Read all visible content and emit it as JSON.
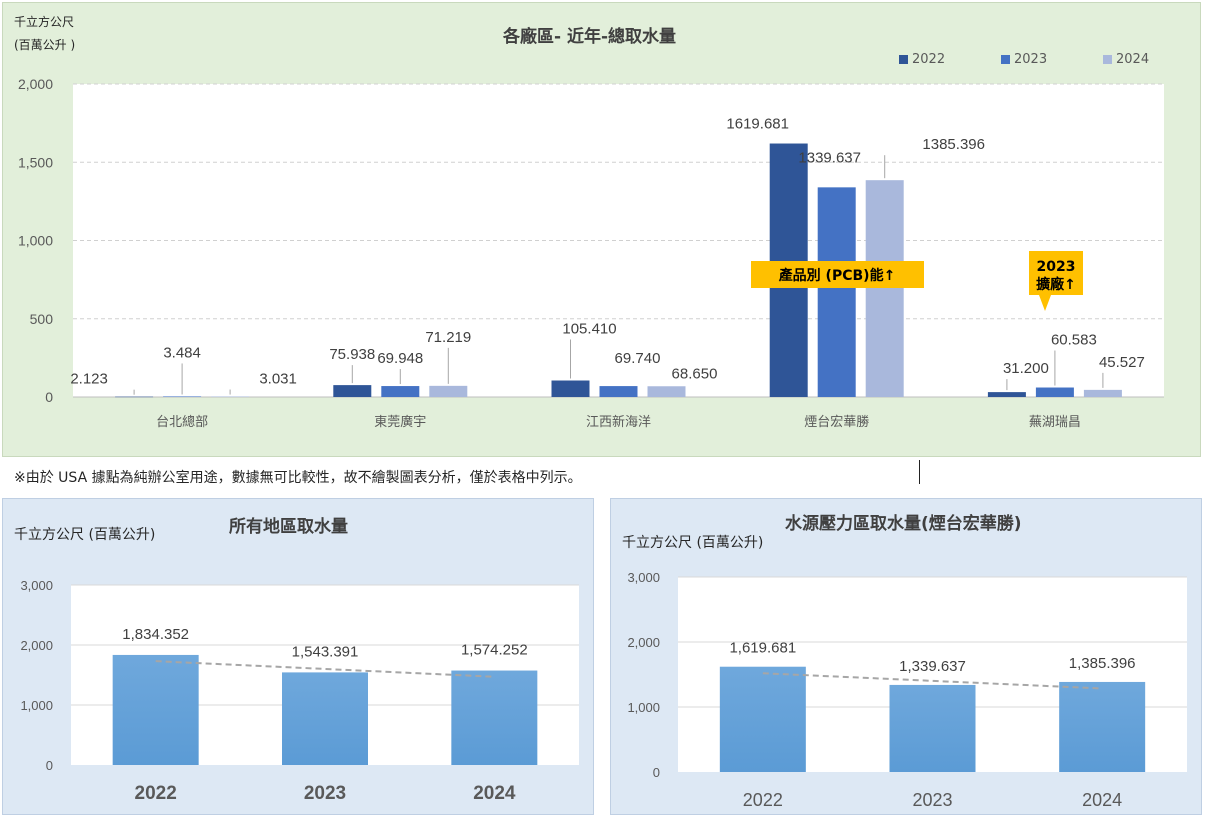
{
  "note": "※由於 USA 據點為純辦公室用途，數據無可比較性，故不繪製圖表分析，僅於表格中列示。",
  "colors": {
    "y2022": "#2f5597",
    "y2023": "#4472c4",
    "y2024": "#a9b8dc",
    "bar_bottom": "#5b9bd5",
    "bar_top": "#6fa8dc",
    "callout": "#ffc000"
  },
  "chart_data": [
    {
      "type": "bar",
      "title": "各廠區- 近年-總取水量",
      "unit_line1": "千立方公尺",
      "unit_line2": "(百萬公升 )",
      "categories": [
        "台北總部",
        "東莞廣宇",
        "江西新海洋",
        "煙台宏華勝",
        "蕪湖瑞昌"
      ],
      "series": [
        {
          "name": "2022",
          "values": [
            2.123,
            75.938,
            105.41,
            1619.681,
            31.2
          ],
          "labels": [
            "2.123",
            "75.938",
            "105.410",
            "1619.681",
            "31.200"
          ]
        },
        {
          "name": "2023",
          "values": [
            3.484,
            69.948,
            69.74,
            1339.637,
            60.583
          ],
          "labels": [
            "3.484",
            "69.948",
            "69.740",
            "1339.637",
            "60.583"
          ]
        },
        {
          "name": "2024",
          "values": [
            3.031,
            71.219,
            68.65,
            1385.396,
            45.527
          ],
          "labels": [
            "3.031",
            "71.219",
            "68.650",
            "1385.396",
            "45.527"
          ]
        }
      ],
      "ylim": [
        0,
        2000
      ],
      "yticks": [
        "0",
        "500",
        "1,000",
        "1,500",
        "2,000"
      ],
      "legend": "top-right",
      "grid": true,
      "annotations": [
        "產品別 (PCB)能↑",
        "2023\n擴廠↑"
      ]
    },
    {
      "type": "bar",
      "title": "所有地區取水量",
      "unit": "千立方公尺 (百萬公升)",
      "categories": [
        "2022",
        "2023",
        "2024"
      ],
      "values": [
        1834.352,
        1543.391,
        1574.252
      ],
      "labels": [
        "1,834.352",
        "1,543.391",
        "1,574.252"
      ],
      "ylim": [
        0,
        3000
      ],
      "yticks": [
        "0",
        "1,000",
        "2,000",
        "3,000"
      ],
      "trendline": true,
      "grid": true
    },
    {
      "type": "bar",
      "title": "水源壓力區取水量(煙台宏華勝)",
      "unit": "千立方公尺 (百萬公升)",
      "categories": [
        "2022",
        "2023",
        "2024"
      ],
      "values": [
        1619.681,
        1339.637,
        1385.396
      ],
      "labels": [
        "1,619.681",
        "1,339.637",
        "1,385.396"
      ],
      "ylim": [
        0,
        3000
      ],
      "yticks": [
        "0",
        "1,000",
        "2,000",
        "3,000"
      ],
      "trendline": true,
      "grid": true
    }
  ]
}
